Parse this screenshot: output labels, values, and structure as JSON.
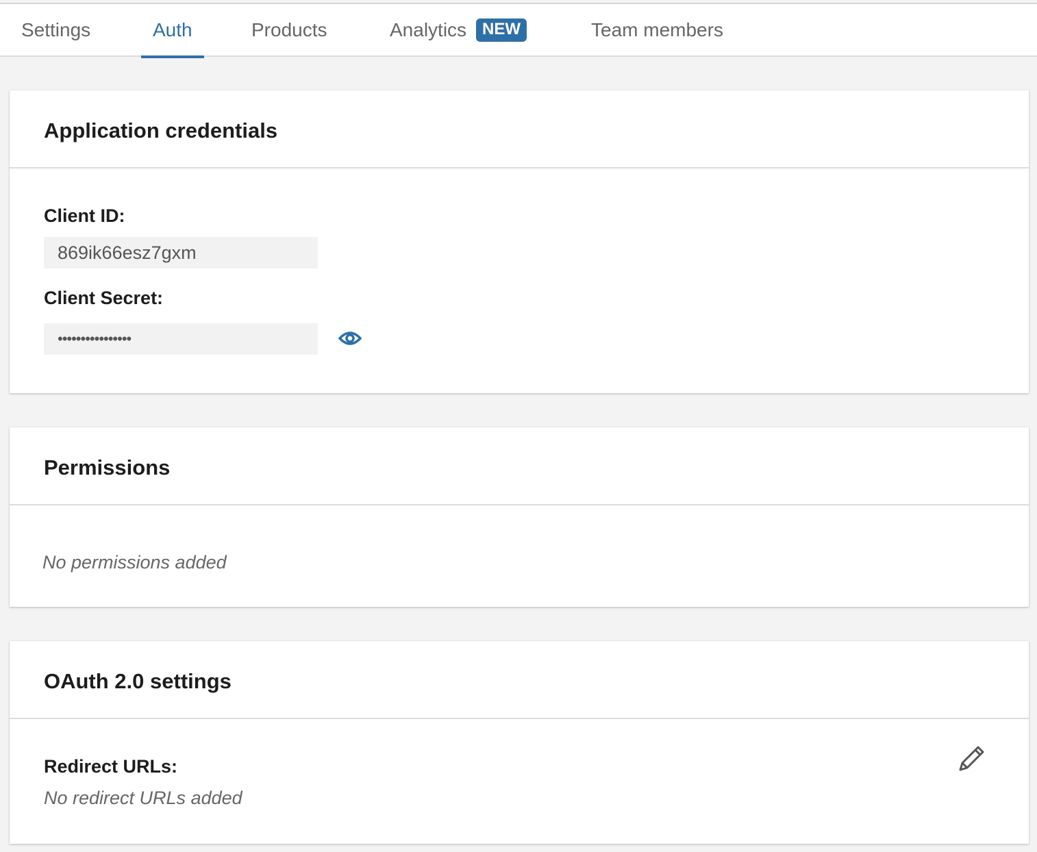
{
  "tabs": [
    {
      "label": "Settings"
    },
    {
      "label": "Auth",
      "active": true
    },
    {
      "label": "Products"
    },
    {
      "label": "Analytics",
      "badge": "NEW"
    },
    {
      "label": "Team members"
    }
  ],
  "credentials": {
    "title": "Application credentials",
    "client_id_label": "Client ID:",
    "client_id": "869ik66esz7gxm",
    "client_secret_label": "Client Secret:",
    "client_secret": "••••••••••••••••",
    "reveal_icon": "eye-icon"
  },
  "permissions": {
    "title": "Permissions",
    "empty": "No permissions added"
  },
  "oauth": {
    "title": "OAuth 2.0 settings",
    "redirect_label": "Redirect URLs:",
    "redirect_empty": "No redirect URLs added",
    "edit_icon": "pencil-icon"
  },
  "colors": {
    "accent": "#2f6fa8",
    "background": "#f3f3f3"
  }
}
